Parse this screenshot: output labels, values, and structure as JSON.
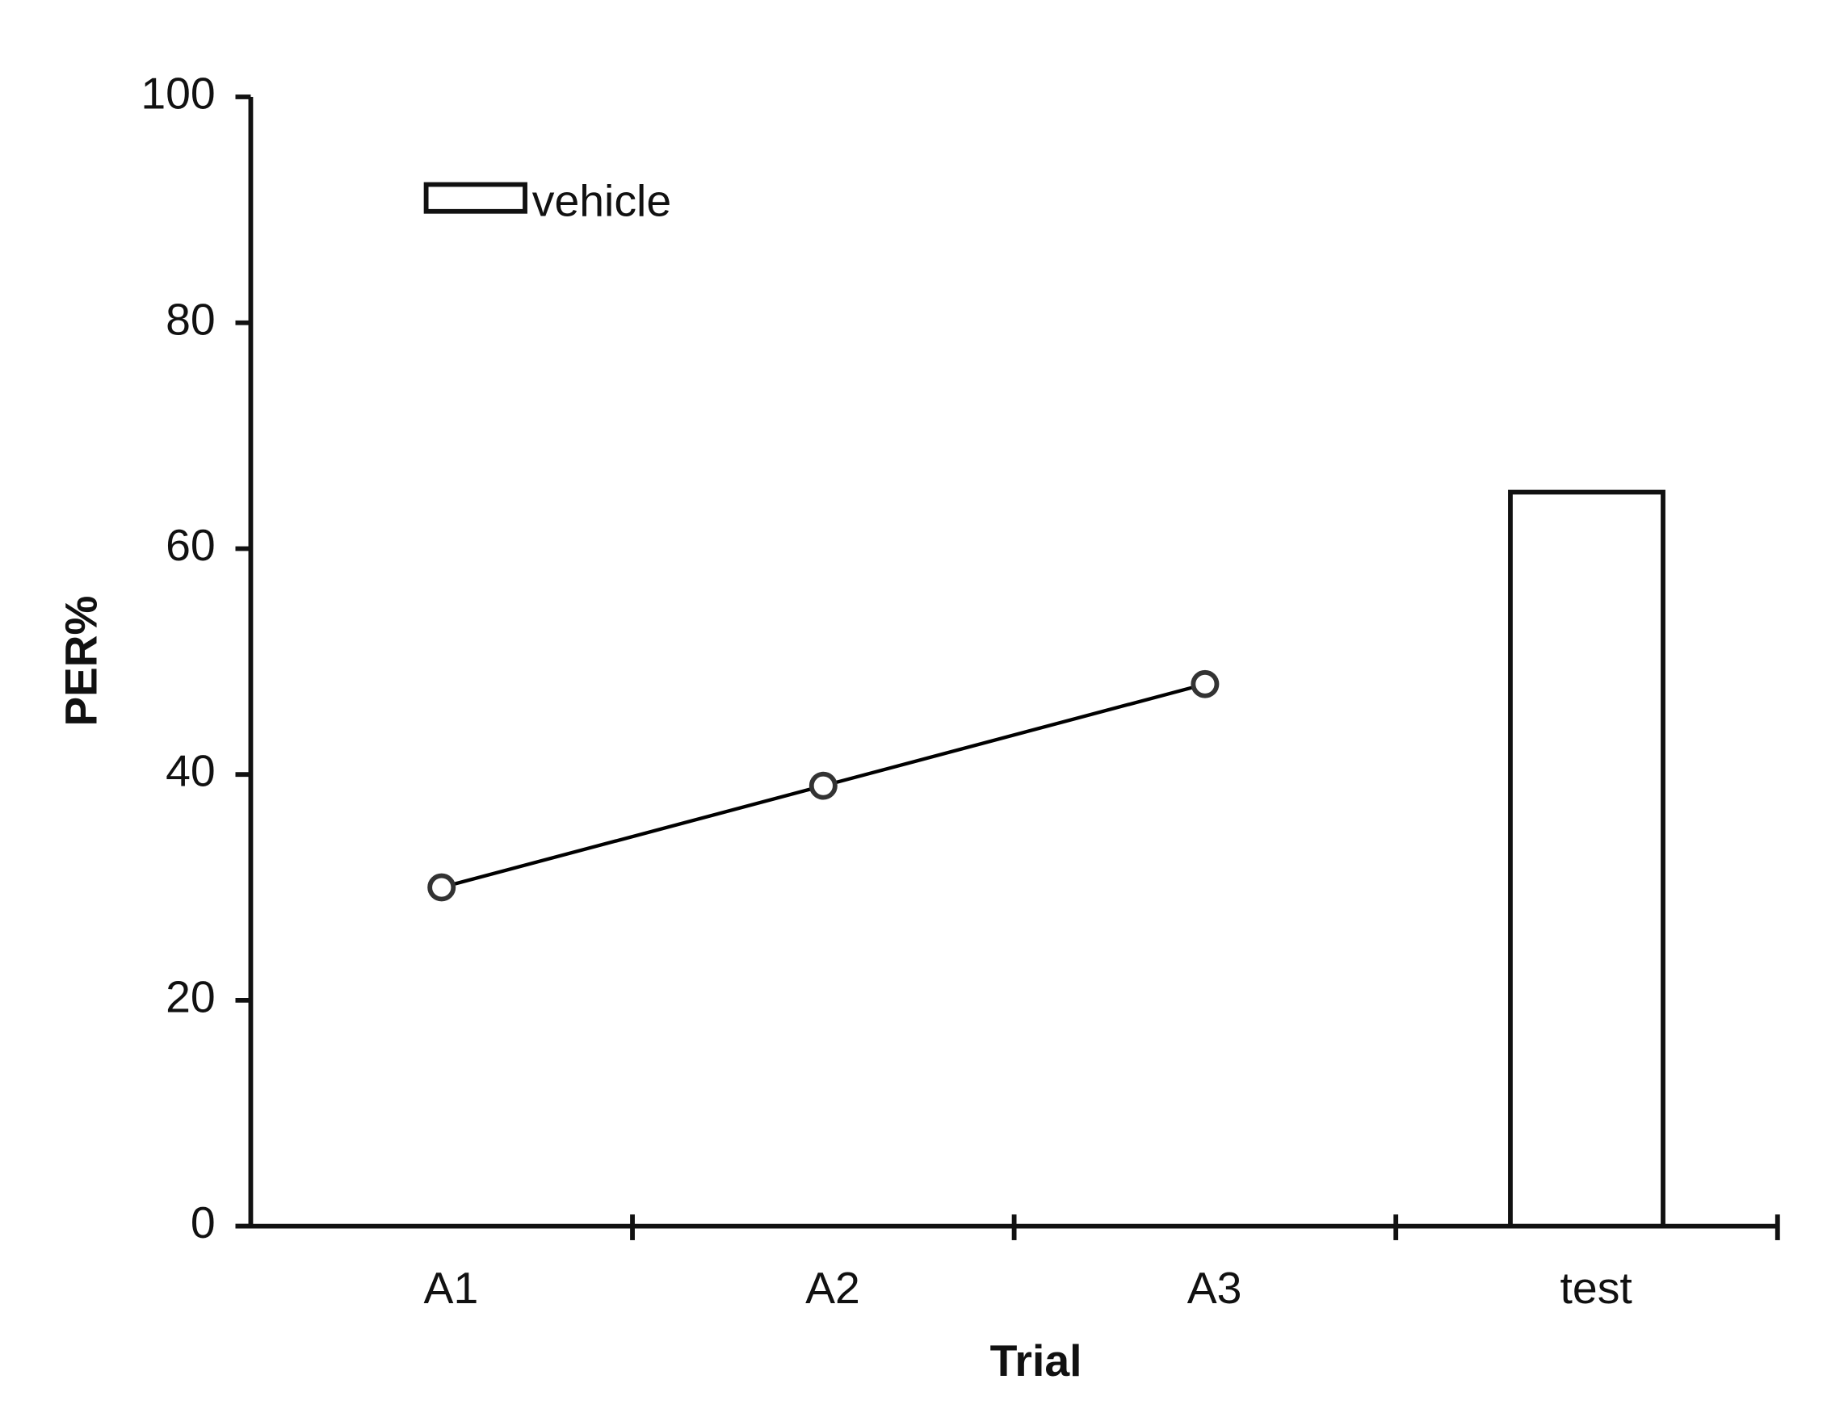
{
  "chart_data": {
    "type": "combo",
    "xlabel": "Trial",
    "ylabel": "PER%",
    "categories": [
      "A1",
      "A2",
      "A3",
      "test"
    ],
    "series": [
      {
        "name": "vehicle",
        "type": "bar",
        "color": "#ffffff",
        "values": [
          null,
          null,
          null,
          65
        ]
      },
      {
        "type": "line",
        "color": "#000000",
        "values": [
          30,
          39,
          48,
          null
        ]
      }
    ],
    "ylim": [
      0,
      100
    ],
    "yticks": [
      0,
      20,
      40,
      60,
      80,
      100
    ],
    "grid": false,
    "legend": "upper left"
  }
}
